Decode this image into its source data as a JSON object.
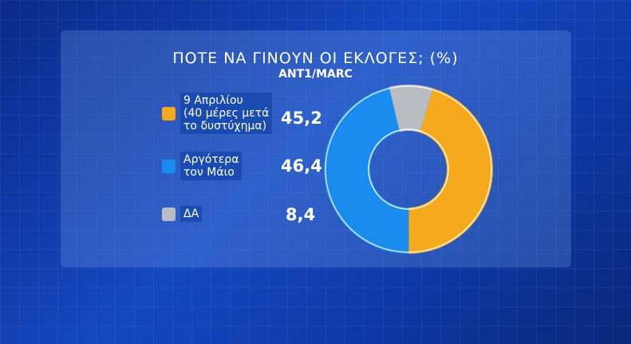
{
  "chart_data": {
    "type": "pie",
    "title": "ΠΟΤΕ ΝΑ ΓΙΝΟΥΝ ΟΙ ΕΚΛΟΓΕΣ; (%)",
    "subtitle": "ANT1/MARC",
    "donut": true,
    "legend_position": "left",
    "slices": [
      {
        "label": "9 Απριλίου (40 μέρες μετά το δυστύχημα)",
        "label_lines": [
          "9 Απριλίου",
          "(40 μέρες μετά",
          "το δυστύχημα)"
        ],
        "value": 45.2,
        "value_label": "45,2",
        "color": "#f5a91c"
      },
      {
        "label": "Αργότερα τον Μάιο",
        "label_lines": [
          "Αργότερα",
          "τον Μάιο"
        ],
        "value": 46.4,
        "value_label": "46,4",
        "color": "#1a8cf0"
      },
      {
        "label": "ΔΑ",
        "label_lines": [
          "ΔΑ"
        ],
        "value": 8.4,
        "value_label": "8,4",
        "color": "#b9bcc2"
      }
    ]
  }
}
